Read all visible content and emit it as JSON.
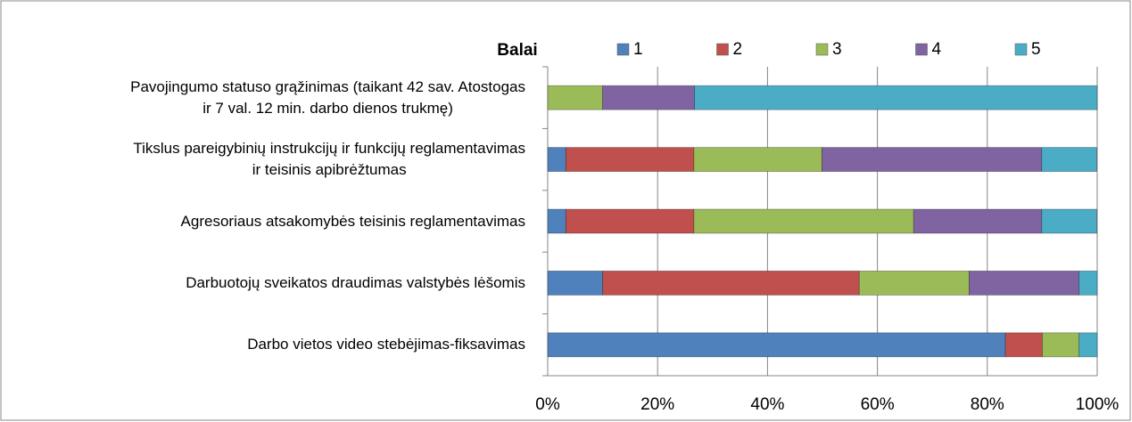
{
  "chart_data": {
    "type": "stacked_bar_horizontal",
    "legend_title": "Balai",
    "categories": [
      "Pavojingumo statuso grąžinimas (taikant 42 sav. Atostogas\nir 7 val. 12 min. darbo dienos trukmę)",
      "Tikslus pareigybinių instrukcijų ir funkcijų reglamentavimas\nir teisinis apibrėžtumas",
      "Agresoriaus atsakomybės teisinis reglamentavimas",
      "Darbuotojų sveikatos draudimas valstybės lėšomis",
      "Darbo vietos video stebėjimas-fiksavimas"
    ],
    "series": [
      {
        "name": "1",
        "color": "#4f81bd",
        "values": [
          0,
          3.3,
          3.3,
          10,
          83.3
        ]
      },
      {
        "name": "2",
        "color": "#c0504d",
        "values": [
          0,
          23.3,
          23.3,
          46.7,
          6.7
        ]
      },
      {
        "name": "3",
        "color": "#9bbb59",
        "values": [
          10,
          23.3,
          40,
          20,
          6.7
        ]
      },
      {
        "name": "4",
        "color": "#8064a2",
        "values": [
          16.7,
          40,
          23.3,
          20,
          0
        ]
      },
      {
        "name": "5",
        "color": "#4bacc6",
        "values": [
          73.3,
          10,
          10,
          3.3,
          3.3
        ]
      }
    ],
    "xlim": [
      0,
      100
    ],
    "xticks": [
      {
        "value": 0,
        "label": "0%"
      },
      {
        "value": 20,
        "label": "20%"
      },
      {
        "value": 40,
        "label": "40%"
      },
      {
        "value": 60,
        "label": "60%"
      },
      {
        "value": 80,
        "label": "80%"
      },
      {
        "value": 100,
        "label": "100%"
      }
    ],
    "grid": true,
    "legend": "top"
  }
}
